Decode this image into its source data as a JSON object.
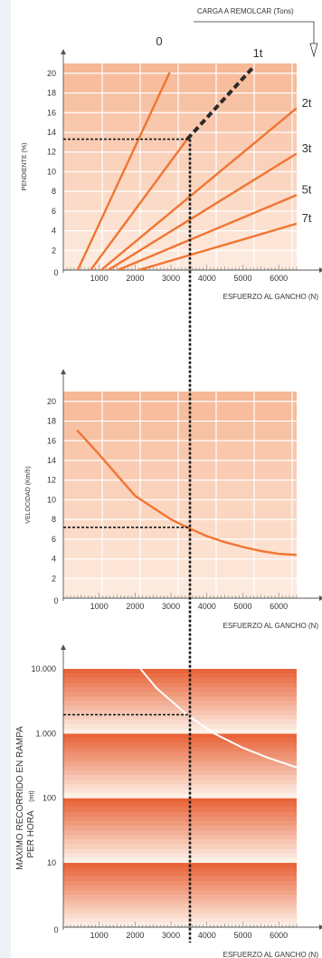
{
  "header": {
    "towing_label": "CARGA A REMOLCAR (Tons)"
  },
  "chart_data": [
    {
      "type": "line",
      "ylabel": "PENDIENTE (%)",
      "xlabel": "ESFUERZO AL GANCHO (N)",
      "xlim": [
        0,
        6500
      ],
      "ylim": [
        0,
        21
      ],
      "xticks": [
        1000,
        2000,
        3000,
        4000,
        5000,
        6000
      ],
      "yticks": [
        2,
        4,
        6,
        8,
        10,
        12,
        14,
        16,
        18,
        20
      ],
      "origin_label": "0",
      "series": [
        {
          "name": "0",
          "points": [
            [
              400,
              0
            ],
            [
              2950,
              20
            ]
          ]
        },
        {
          "name": "1t",
          "points": [
            [
              760,
              0
            ],
            [
              3450,
              13.3
            ]
          ]
        },
        {
          "name": "2t",
          "points": [
            [
              1050,
              0
            ],
            [
              6480,
              16.4
            ]
          ]
        },
        {
          "name": "3t",
          "points": [
            [
              1250,
              0
            ],
            [
              6480,
              11.8
            ]
          ]
        },
        {
          "name": "5t",
          "points": [
            [
              1520,
              0
            ],
            [
              6480,
              7.6
            ]
          ]
        },
        {
          "name": "7t",
          "points": [
            [
              2100,
              0
            ],
            [
              6480,
              4.7
            ]
          ]
        }
      ],
      "dashed_extension": {
        "series": "1t",
        "points": [
          [
            3450,
            13.3
          ],
          [
            5260,
            20.5
          ]
        ]
      },
      "reading_guide": {
        "x": 3450,
        "y": 13.3
      },
      "colors": {
        "line": "#f07532",
        "band_top": "#f6b896",
        "band_bottom": "#fdeade",
        "guide": "#1a1a1a"
      }
    },
    {
      "type": "line",
      "ylabel": "VELOCIDAD (Km/h)",
      "xlabel": "ESFUERZO AL GANCHO (N)",
      "xlim": [
        0,
        6500
      ],
      "ylim": [
        0,
        21
      ],
      "xticks": [
        1000,
        2000,
        3000,
        4000,
        5000,
        6000
      ],
      "yticks": [
        2,
        4,
        6,
        8,
        10,
        12,
        14,
        16,
        18,
        20
      ],
      "origin_label": "0",
      "series": [
        {
          "points": [
            [
              400,
              17
            ],
            [
              1000,
              14.6
            ],
            [
              1500,
              12.5
            ],
            [
              2000,
              10.4
            ],
            [
              2500,
              9.2
            ],
            [
              3000,
              8.0
            ],
            [
              3450,
              7.2
            ],
            [
              4000,
              6.3
            ],
            [
              4500,
              5.7
            ],
            [
              5000,
              5.2
            ],
            [
              5500,
              4.8
            ],
            [
              6000,
              4.5
            ],
            [
              6480,
              4.4
            ]
          ]
        }
      ],
      "reading_guide": {
        "x": 3450,
        "y": 7.2
      },
      "colors": {
        "line": "#f07532",
        "band_top": "#f6b896",
        "band_bottom": "#fdeade",
        "guide": "#1a1a1a"
      }
    },
    {
      "type": "line",
      "ylabel": "MAXIMO RECORRIDO EN RAMPA PER HORA (mt)",
      "ylabel_line1": "MAXIMO RECORRIDO EN RAMPA",
      "ylabel_line2": "PER HORA",
      "ylabel_unit": "(mt)",
      "xlabel": "ESFUERZO AL GANCHO (N)",
      "xlim": [
        0,
        6500
      ],
      "yscale": "log",
      "ylim": [
        1,
        10000
      ],
      "xticks": [
        1000,
        2000,
        3000,
        4000,
        5000,
        6000
      ],
      "yticks": [
        10,
        100,
        1000,
        10000
      ],
      "ytick_labels": [
        "10",
        "100",
        "1.000",
        "10.000"
      ],
      "origin_label": "0",
      "series": [
        {
          "points": [
            [
              2150,
              10000
            ],
            [
              2600,
              5000
            ],
            [
              3450,
              1950
            ],
            [
              4200,
              1000
            ],
            [
              5000,
              600
            ],
            [
              5700,
              420
            ],
            [
              6480,
              300
            ]
          ]
        }
      ],
      "reading_guide": {
        "x": 3450,
        "y": 1950
      },
      "colors": {
        "line": "#ffffff",
        "band_top": "#e8643a",
        "band_bottom": "#fdf0e6",
        "guide": "#1a1a1a"
      }
    }
  ]
}
